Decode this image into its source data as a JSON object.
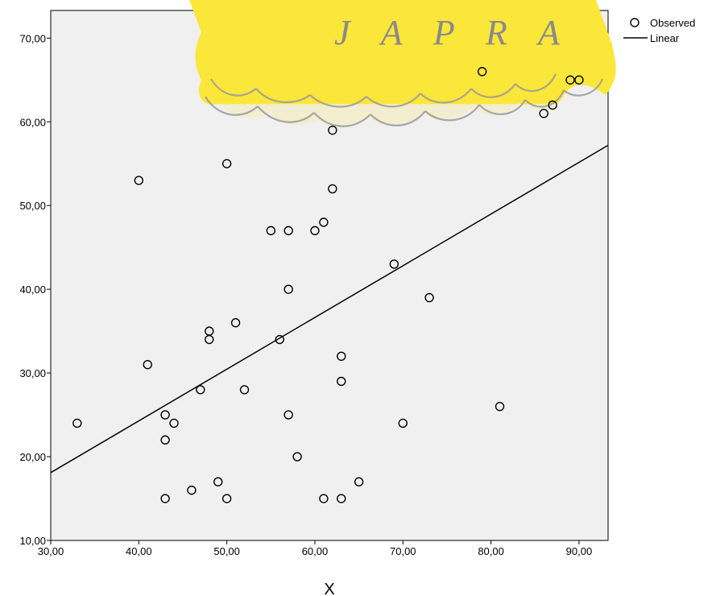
{
  "chart_data": {
    "type": "scatter",
    "title": "",
    "xlabel": "X",
    "ylabel": "",
    "xlim": [
      30,
      93.3
    ],
    "ylim": [
      10,
      73.3
    ],
    "x_ticks": [
      "30,00",
      "40,00",
      "50,00",
      "60,00",
      "70,00",
      "80,00",
      "90,00"
    ],
    "y_ticks": [
      "10,00",
      "20,00",
      "30,00",
      "40,00",
      "50,00",
      "60,00",
      "70,00"
    ],
    "grid": false,
    "legend_position": "top-right",
    "legend": [
      "Observed",
      "Linear"
    ],
    "series": [
      {
        "name": "Observed",
        "points": [
          [
            33,
            24
          ],
          [
            40,
            53
          ],
          [
            41,
            31
          ],
          [
            43,
            25
          ],
          [
            43,
            22
          ],
          [
            43,
            15
          ],
          [
            44,
            24
          ],
          [
            46,
            16
          ],
          [
            47,
            28
          ],
          [
            48,
            35
          ],
          [
            48,
            34
          ],
          [
            49,
            17
          ],
          [
            50,
            55
          ],
          [
            50,
            15
          ],
          [
            51,
            36
          ],
          [
            52,
            28
          ],
          [
            55,
            47
          ],
          [
            56,
            34
          ],
          [
            57,
            47
          ],
          [
            57,
            40
          ],
          [
            57,
            25
          ],
          [
            58,
            20
          ],
          [
            60,
            47
          ],
          [
            61,
            48
          ],
          [
            61,
            15
          ],
          [
            62,
            59
          ],
          [
            62,
            52
          ],
          [
            63,
            32
          ],
          [
            63,
            29
          ],
          [
            63,
            15
          ],
          [
            65,
            17
          ],
          [
            69,
            43
          ],
          [
            70,
            24
          ],
          [
            73,
            39
          ],
          [
            79,
            66
          ],
          [
            81,
            26
          ],
          [
            86,
            61
          ],
          [
            87,
            62
          ],
          [
            89,
            65
          ],
          [
            90,
            65
          ]
        ]
      },
      {
        "name": "Linear",
        "line": [
          [
            30,
            18.1
          ],
          [
            93.3,
            57.2
          ]
        ]
      }
    ]
  },
  "watermark": {
    "text": "J A P R A"
  },
  "colors": {
    "plot_background": "#f0f0f0",
    "watermark_fill": "#fbe63a",
    "marker_stroke": "#000000",
    "line": "#000000"
  }
}
